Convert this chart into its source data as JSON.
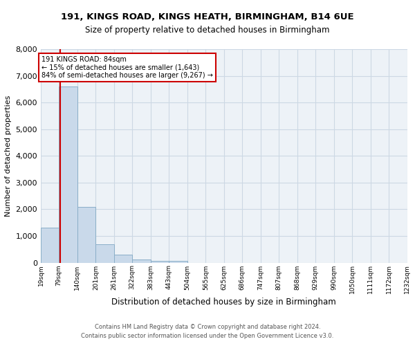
{
  "title1": "191, KINGS ROAD, KINGS HEATH, BIRMINGHAM, B14 6UE",
  "title2": "Size of property relative to detached houses in Birmingham",
  "xlabel": "Distribution of detached houses by size in Birmingham",
  "ylabel": "Number of detached properties",
  "footer1": "Contains HM Land Registry data © Crown copyright and database right 2024.",
  "footer2": "Contains public sector information licensed under the Open Government Licence v3.0.",
  "annotation_title": "191 KINGS ROAD: 84sqm",
  "annotation_line1": "← 15% of detached houses are smaller (1,643)",
  "annotation_line2": "84% of semi-detached houses are larger (9,267) →",
  "property_size": 84,
  "bar_color": "#c9d9ea",
  "bar_edge_color": "#8aaec8",
  "grid_color": "#ccd8e4",
  "background_color": "#edf2f7",
  "annotation_box_color": "#ffffff",
  "annotation_box_edge": "#cc0000",
  "redline_color": "#cc0000",
  "bins": [
    19,
    79,
    140,
    201,
    261,
    322,
    383,
    443,
    504,
    565,
    625,
    686,
    747,
    807,
    868,
    929,
    990,
    1050,
    1111,
    1172,
    1232
  ],
  "bin_labels": [
    "19sqm",
    "79sqm",
    "140sqm",
    "201sqm",
    "261sqm",
    "322sqm",
    "383sqm",
    "443sqm",
    "504sqm",
    "565sqm",
    "625sqm",
    "686sqm",
    "747sqm",
    "807sqm",
    "868sqm",
    "929sqm",
    "990sqm",
    "1050sqm",
    "1111sqm",
    "1172sqm",
    "1232sqm"
  ],
  "counts": [
    1300,
    6600,
    2080,
    680,
    290,
    120,
    70,
    70,
    0,
    0,
    0,
    0,
    0,
    0,
    0,
    0,
    0,
    0,
    0,
    0
  ],
  "ylim": [
    0,
    8000
  ],
  "yticks": [
    0,
    1000,
    2000,
    3000,
    4000,
    5000,
    6000,
    7000,
    8000
  ]
}
